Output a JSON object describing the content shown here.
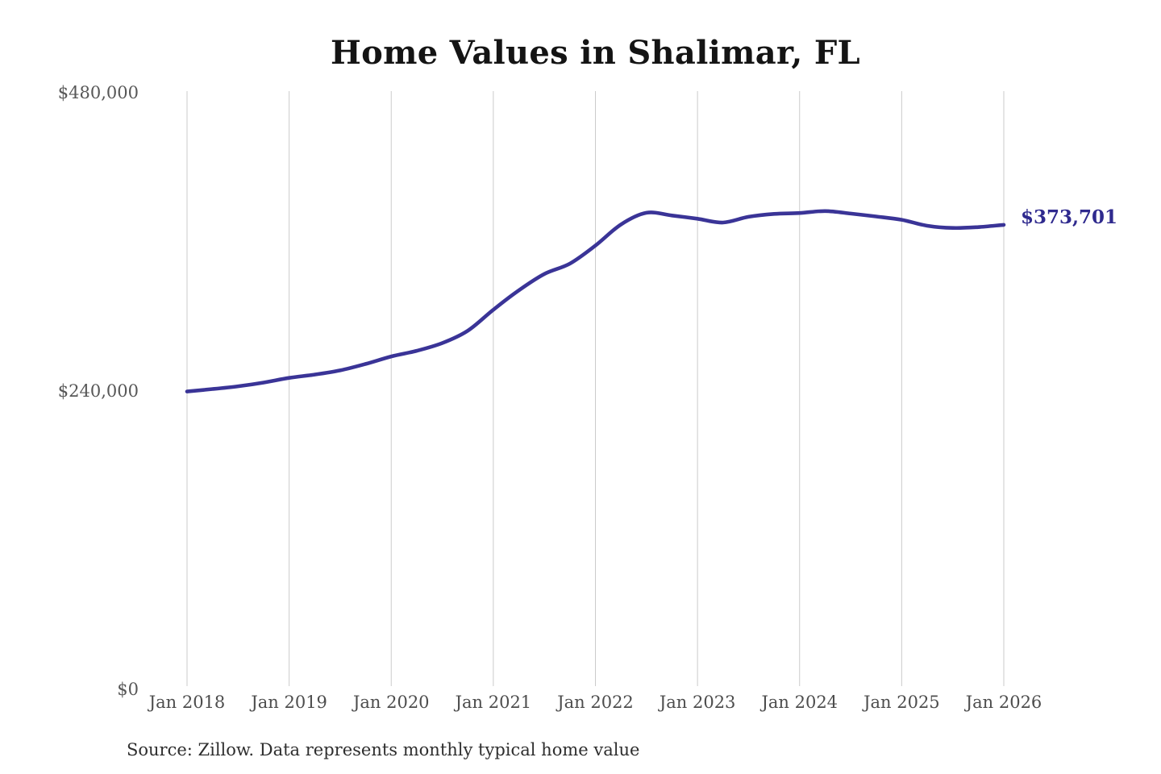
{
  "page": {
    "title": "Home Values in Shalimar, FL",
    "source_note": "Source: Zillow. Data represents monthly typical home value"
  },
  "chart_data": {
    "type": "line",
    "title": "Home Values in Shalimar, FL",
    "xlabel": "",
    "ylabel": "",
    "ylim": [
      0,
      480000
    ],
    "xlim": [
      "2018-01",
      "2026-01"
    ],
    "grid": "vertical-only",
    "legend": "none",
    "colors": {
      "line": "#3a3497",
      "end_label": "#2f2a8e",
      "gridline": "#cbcbcb",
      "title": "#141414",
      "tick_text": "#575757"
    },
    "yticks": [
      {
        "value": 0,
        "label": "$0"
      },
      {
        "value": 240000,
        "label": "$240,000"
      },
      {
        "value": 480000,
        "label": "$480,000"
      }
    ],
    "xticks": [
      {
        "date": "2018-01",
        "label": "Jan 2018"
      },
      {
        "date": "2019-01",
        "label": "Jan 2019"
      },
      {
        "date": "2020-01",
        "label": "Jan 2020"
      },
      {
        "date": "2021-01",
        "label": "Jan 2021"
      },
      {
        "date": "2022-01",
        "label": "Jan 2022"
      },
      {
        "date": "2023-01",
        "label": "Jan 2023"
      },
      {
        "date": "2024-01",
        "label": "Jan 2024"
      },
      {
        "date": "2025-01",
        "label": "Jan 2025"
      },
      {
        "date": "2026-01",
        "label": "Jan 2026"
      }
    ],
    "end_label": "$373,701",
    "latest_value": 373701,
    "series": [
      {
        "name": "Typical home value",
        "points": [
          {
            "date": "2018-01",
            "value": 239600
          },
          {
            "date": "2018-04",
            "value": 241600
          },
          {
            "date": "2018-07",
            "value": 243800
          },
          {
            "date": "2018-10",
            "value": 246800
          },
          {
            "date": "2019-01",
            "value": 250600
          },
          {
            "date": "2019-04",
            "value": 253200
          },
          {
            "date": "2019-07",
            "value": 256600
          },
          {
            "date": "2019-10",
            "value": 261800
          },
          {
            "date": "2020-01",
            "value": 267800
          },
          {
            "date": "2020-04",
            "value": 272400
          },
          {
            "date": "2020-07",
            "value": 278600
          },
          {
            "date": "2020-10",
            "value": 288500
          },
          {
            "date": "2021-01",
            "value": 305400
          },
          {
            "date": "2021-04",
            "value": 321000
          },
          {
            "date": "2021-07",
            "value": 334200
          },
          {
            "date": "2021-10",
            "value": 342500
          },
          {
            "date": "2022-01",
            "value": 357000
          },
          {
            "date": "2022-04",
            "value": 374000
          },
          {
            "date": "2022-07",
            "value": 383400
          },
          {
            "date": "2022-10",
            "value": 381200
          },
          {
            "date": "2023-01",
            "value": 378600
          },
          {
            "date": "2023-04",
            "value": 375600
          },
          {
            "date": "2023-07",
            "value": 380200
          },
          {
            "date": "2023-10",
            "value": 382500
          },
          {
            "date": "2024-01",
            "value": 383200
          },
          {
            "date": "2024-04",
            "value": 384800
          },
          {
            "date": "2024-07",
            "value": 382800
          },
          {
            "date": "2024-10",
            "value": 380400
          },
          {
            "date": "2025-01",
            "value": 377800
          },
          {
            "date": "2025-04",
            "value": 373000
          },
          {
            "date": "2025-07",
            "value": 371200
          },
          {
            "date": "2025-10",
            "value": 371900
          },
          {
            "date": "2026-01",
            "value": 373701
          }
        ]
      }
    ],
    "source": "Source: Zillow. Data represents monthly typical home value"
  }
}
